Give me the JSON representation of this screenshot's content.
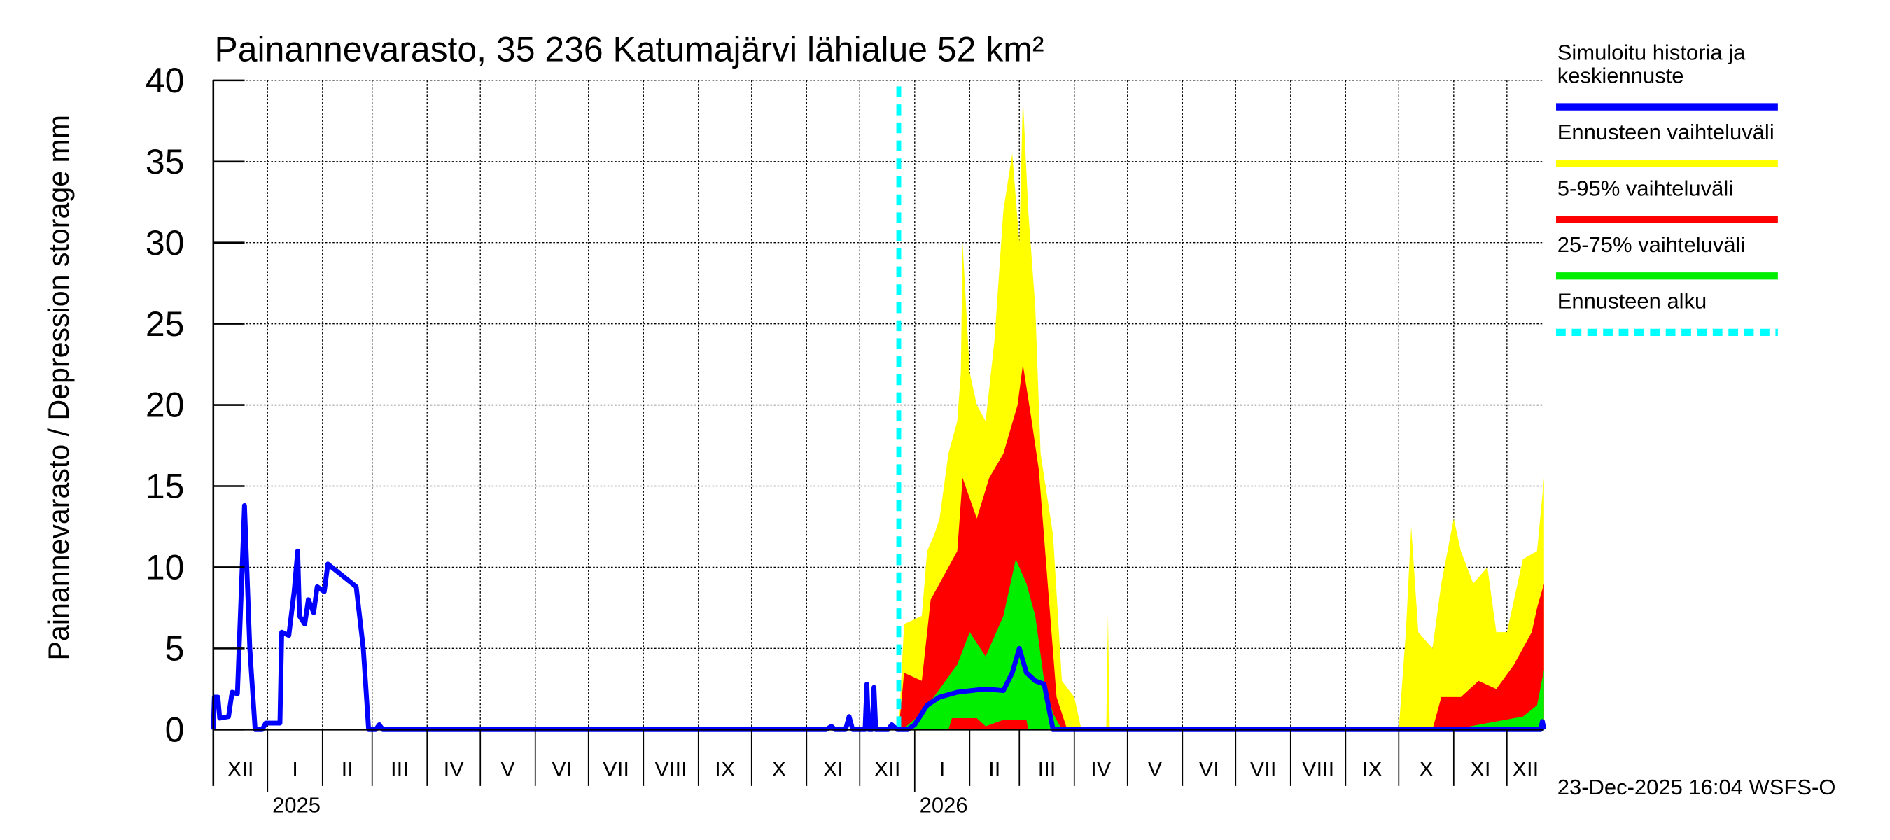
{
  "chart_data": {
    "type": "area",
    "title": "Painannevarasto, 35 236 Katumajärvi lähialue 52 km²",
    "ylabel": "Painannevarasto / Depression storage    mm",
    "ylim": [
      0,
      40
    ],
    "yticks": [
      0,
      5,
      10,
      15,
      20,
      25,
      30,
      35,
      40
    ],
    "xlim": [
      "2024-12-01",
      "2026-12-22"
    ],
    "grid": true,
    "legend_position": "right",
    "months": [
      {
        "start": "2024-12-01",
        "label": "XII"
      },
      {
        "start": "2025-01-01",
        "label": "I"
      },
      {
        "start": "2025-02-01",
        "label": "II"
      },
      {
        "start": "2025-03-01",
        "label": "III"
      },
      {
        "start": "2025-04-01",
        "label": "IV"
      },
      {
        "start": "2025-05-01",
        "label": "V"
      },
      {
        "start": "2025-06-01",
        "label": "VI"
      },
      {
        "start": "2025-07-01",
        "label": "VII"
      },
      {
        "start": "2025-08-01",
        "label": "VIII"
      },
      {
        "start": "2025-09-01",
        "label": "IX"
      },
      {
        "start": "2025-10-01",
        "label": "X"
      },
      {
        "start": "2025-11-01",
        "label": "XI"
      },
      {
        "start": "2025-12-01",
        "label": "XII"
      },
      {
        "start": "2026-01-01",
        "label": "I"
      },
      {
        "start": "2026-02-01",
        "label": "II"
      },
      {
        "start": "2026-03-01",
        "label": "III"
      },
      {
        "start": "2026-04-01",
        "label": "IV"
      },
      {
        "start": "2026-05-01",
        "label": "V"
      },
      {
        "start": "2026-06-01",
        "label": "VI"
      },
      {
        "start": "2026-07-01",
        "label": "VII"
      },
      {
        "start": "2026-08-01",
        "label": "VIII"
      },
      {
        "start": "2026-09-01",
        "label": "IX"
      },
      {
        "start": "2026-10-01",
        "label": "X"
      },
      {
        "start": "2026-11-01",
        "label": "XI"
      },
      {
        "start": "2026-12-01",
        "label": "XII"
      }
    ],
    "years": [
      {
        "date": "2025-01-01",
        "label": "2025"
      },
      {
        "date": "2026-01-01",
        "label": "2026"
      }
    ],
    "forecast_start": "2025-12-23",
    "series": [
      {
        "name": "Ennusteen vaihteluväli",
        "color": "#ffff00",
        "kind": "band",
        "lower": [
          [
            "2025-12-23",
            0
          ],
          [
            "2026-12-31",
            0
          ]
        ],
        "upper": [
          [
            "2025-12-23",
            0
          ],
          [
            "2025-12-26",
            6.5
          ],
          [
            "2026-01-05",
            7
          ],
          [
            "2026-01-08",
            11
          ],
          [
            "2026-01-12",
            12
          ],
          [
            "2026-01-15",
            13
          ],
          [
            "2026-01-20",
            17
          ],
          [
            "2026-01-25",
            19
          ],
          [
            "2026-01-27",
            22
          ],
          [
            "2026-01-28",
            30
          ],
          [
            "2026-02-01",
            22
          ],
          [
            "2026-02-05",
            20
          ],
          [
            "2026-02-10",
            19
          ],
          [
            "2026-02-15",
            24
          ],
          [
            "2026-02-20",
            32
          ],
          [
            "2026-02-25",
            35.5
          ],
          [
            "2026-03-01",
            30
          ],
          [
            "2026-03-03",
            39
          ],
          [
            "2026-03-06",
            32
          ],
          [
            "2026-03-10",
            26
          ],
          [
            "2026-03-13",
            17
          ],
          [
            "2026-03-20",
            12
          ],
          [
            "2026-03-25",
            3
          ],
          [
            "2026-04-01",
            2
          ],
          [
            "2026-04-05",
            0
          ],
          [
            "2026-04-19",
            0
          ],
          [
            "2026-04-20",
            7
          ],
          [
            "2026-04-21",
            0
          ],
          [
            "2026-10-01",
            0
          ],
          [
            "2026-10-05",
            6
          ],
          [
            "2026-10-08",
            12.5
          ],
          [
            "2026-10-12",
            6
          ],
          [
            "2026-10-20",
            5
          ],
          [
            "2026-10-25",
            9
          ],
          [
            "2026-11-01",
            13
          ],
          [
            "2026-11-05",
            11
          ],
          [
            "2026-11-12",
            9
          ],
          [
            "2026-11-20",
            10
          ],
          [
            "2026-11-25",
            6
          ],
          [
            "2026-12-01",
            6
          ],
          [
            "2026-12-10",
            10.5
          ],
          [
            "2026-12-18",
            11
          ],
          [
            "2026-12-22",
            15.5
          ]
        ]
      },
      {
        "name": "5-95% vaihteluväli",
        "color": "#ff0000",
        "kind": "band",
        "lower": [
          [
            "2025-12-23",
            0
          ],
          [
            "2026-12-31",
            0
          ]
        ],
        "upper": [
          [
            "2025-12-23",
            0
          ],
          [
            "2025-12-26",
            3.5
          ],
          [
            "2026-01-05",
            3
          ],
          [
            "2026-01-10",
            8
          ],
          [
            "2026-01-20",
            10
          ],
          [
            "2026-01-25",
            11
          ],
          [
            "2026-01-28",
            15.5
          ],
          [
            "2026-02-05",
            13
          ],
          [
            "2026-02-12",
            15.5
          ],
          [
            "2026-02-20",
            17
          ],
          [
            "2026-02-28",
            20
          ],
          [
            "2026-03-03",
            22.5
          ],
          [
            "2026-03-08",
            19
          ],
          [
            "2026-03-12",
            16
          ],
          [
            "2026-03-17",
            9
          ],
          [
            "2026-03-22",
            2
          ],
          [
            "2026-03-28",
            0
          ],
          [
            "2026-10-20",
            0
          ],
          [
            "2026-10-25",
            2
          ],
          [
            "2026-11-05",
            2
          ],
          [
            "2026-11-15",
            3
          ],
          [
            "2026-11-25",
            2.5
          ],
          [
            "2026-12-05",
            4
          ],
          [
            "2026-12-15",
            6
          ],
          [
            "2026-12-18",
            7.5
          ],
          [
            "2026-12-22",
            9
          ]
        ]
      },
      {
        "name": "25-75% vaihteluväli",
        "color": "#00ee00",
        "kind": "band",
        "lower": [
          [
            "2025-12-23",
            0
          ],
          [
            "2026-01-20",
            0
          ],
          [
            "2026-01-22",
            0.7
          ],
          [
            "2026-02-05",
            0.7
          ],
          [
            "2026-02-10",
            0.2
          ],
          [
            "2026-02-20",
            0.6
          ],
          [
            "2026-03-05",
            0.6
          ],
          [
            "2026-03-06",
            0
          ],
          [
            "2026-12-31",
            0
          ]
        ],
        "upper": [
          [
            "2025-12-25",
            0
          ],
          [
            "2026-01-05",
            1
          ],
          [
            "2026-01-15",
            2.5
          ],
          [
            "2026-01-25",
            4
          ],
          [
            "2026-02-01",
            6
          ],
          [
            "2026-02-10",
            4.5
          ],
          [
            "2026-02-20",
            7
          ],
          [
            "2026-02-27",
            10.5
          ],
          [
            "2026-03-05",
            9
          ],
          [
            "2026-03-10",
            7
          ],
          [
            "2026-03-15",
            3
          ],
          [
            "2026-03-20",
            1
          ],
          [
            "2026-03-25",
            0
          ],
          [
            "2026-11-01",
            0
          ],
          [
            "2026-11-15",
            0.3
          ],
          [
            "2026-12-10",
            0.8
          ],
          [
            "2026-12-18",
            1.5
          ],
          [
            "2026-12-22",
            3.7
          ]
        ]
      },
      {
        "name": "Simuloitu historia ja keskiennuste",
        "color": "#0000ff",
        "kind": "line",
        "values": [
          [
            "2024-12-01",
            0
          ],
          [
            "2024-12-02",
            2
          ],
          [
            "2024-12-04",
            2
          ],
          [
            "2024-12-05",
            0.7
          ],
          [
            "2024-12-10",
            0.8
          ],
          [
            "2024-12-12",
            2.3
          ],
          [
            "2024-12-15",
            2.2
          ],
          [
            "2024-12-19",
            13.8
          ],
          [
            "2024-12-22",
            5
          ],
          [
            "2024-12-25",
            0
          ],
          [
            "2024-12-29",
            0
          ],
          [
            "2024-12-31",
            0.4
          ],
          [
            "2025-01-08",
            0.4
          ],
          [
            "2025-01-09",
            6
          ],
          [
            "2025-01-13",
            5.8
          ],
          [
            "2025-01-16",
            8.5
          ],
          [
            "2025-01-18",
            11
          ],
          [
            "2025-01-19",
            7
          ],
          [
            "2025-01-22",
            6.5
          ],
          [
            "2025-01-24",
            8
          ],
          [
            "2025-01-27",
            7.2
          ],
          [
            "2025-01-29",
            8.8
          ],
          [
            "2025-02-02",
            8.5
          ],
          [
            "2025-02-04",
            10.2
          ],
          [
            "2025-02-20",
            8.8
          ],
          [
            "2025-02-24",
            5
          ],
          [
            "2025-02-27",
            0
          ],
          [
            "2025-03-03",
            0
          ],
          [
            "2025-03-05",
            0.3
          ],
          [
            "2025-03-07",
            0
          ],
          [
            "2025-11-12",
            0
          ],
          [
            "2025-11-15",
            0.2
          ],
          [
            "2025-11-17",
            0
          ],
          [
            "2025-11-23",
            0
          ],
          [
            "2025-11-25",
            0.8
          ],
          [
            "2025-11-27",
            0
          ],
          [
            "2025-12-04",
            0
          ],
          [
            "2025-12-05",
            2.8
          ],
          [
            "2025-12-06",
            0
          ],
          [
            "2025-12-08",
            0
          ],
          [
            "2025-12-09",
            2.6
          ],
          [
            "2025-12-10",
            0
          ],
          [
            "2025-12-17",
            0
          ],
          [
            "2025-12-19",
            0.3
          ],
          [
            "2025-12-22",
            0
          ],
          [
            "2025-12-28",
            0
          ],
          [
            "2026-01-01",
            0.3
          ],
          [
            "2026-01-08",
            1.5
          ],
          [
            "2026-01-15",
            2
          ],
          [
            "2026-01-25",
            2.3
          ],
          [
            "2026-02-10",
            2.5
          ],
          [
            "2026-02-20",
            2.4
          ],
          [
            "2026-02-25",
            3.5
          ],
          [
            "2026-03-01",
            5
          ],
          [
            "2026-03-05",
            3.5
          ],
          [
            "2026-03-10",
            3
          ],
          [
            "2026-03-15",
            2.8
          ],
          [
            "2026-03-20",
            0
          ],
          [
            "2026-12-20",
            0
          ],
          [
            "2026-12-21",
            0.5
          ],
          [
            "2026-12-22",
            0
          ]
        ]
      }
    ],
    "legend": [
      {
        "label_lines": [
          "Simuloitu historia ja",
          "keskiennuste"
        ],
        "color": "#0000ff",
        "style": "solid"
      },
      {
        "label_lines": [
          "Ennusteen vaihteluväli"
        ],
        "color": "#ffff00",
        "style": "solid"
      },
      {
        "label_lines": [
          "5-95% vaihteluväli"
        ],
        "color": "#ff0000",
        "style": "solid"
      },
      {
        "label_lines": [
          "25-75% vaihteluväli"
        ],
        "color": "#00ee00",
        "style": "solid"
      },
      {
        "label_lines": [
          "Ennusteen alku"
        ],
        "color": "#00ffff",
        "style": "dashed"
      }
    ],
    "timestamp": "23-Dec-2025 16:04 WSFS-O"
  }
}
